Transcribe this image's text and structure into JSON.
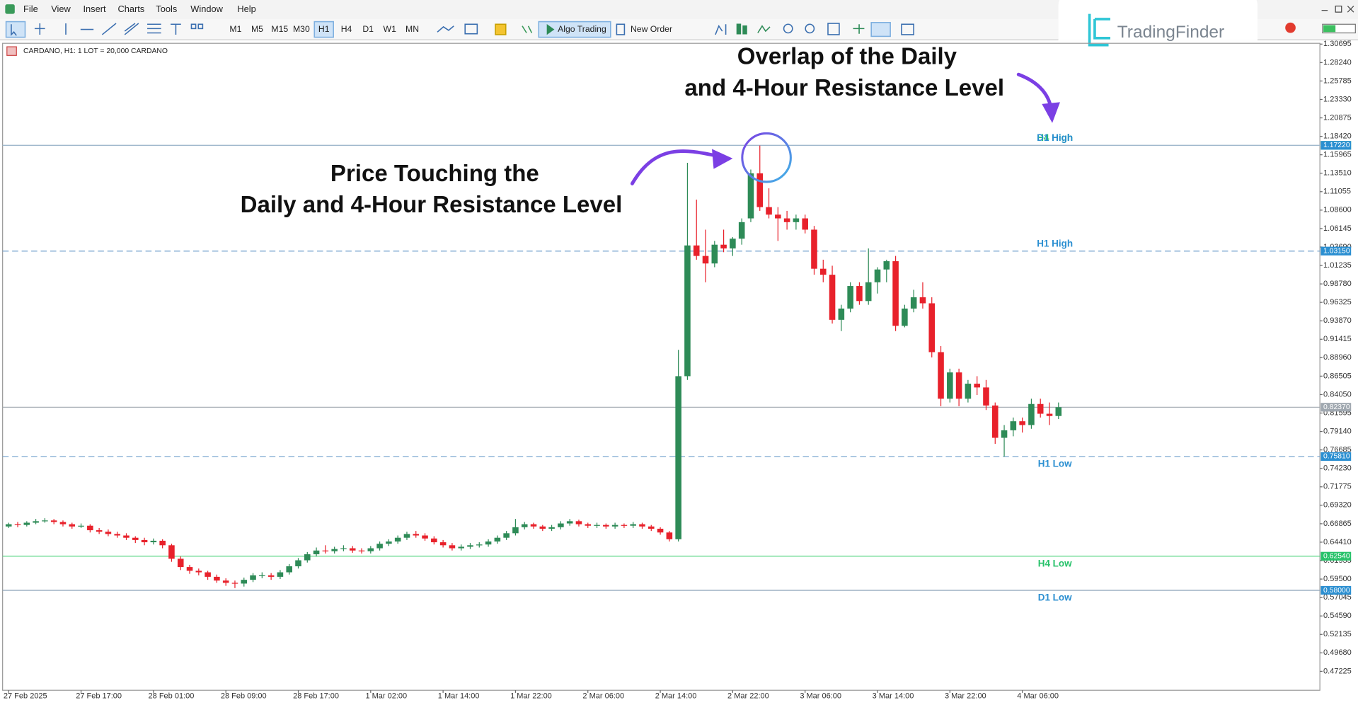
{
  "menu": [
    "File",
    "View",
    "Insert",
    "Charts",
    "Tools",
    "Window",
    "Help"
  ],
  "toolbar": {
    "timeframes": [
      "M1",
      "M5",
      "M15",
      "M30",
      "H1",
      "H4",
      "D1",
      "W1",
      "MN"
    ],
    "buttons": [
      "Algo Trading",
      "New Order"
    ]
  },
  "logo": "TradingFinder",
  "chart_data": {
    "type": "candlestick",
    "header": "CARDANO, H1:  1 LOT = 20,000 CARDANO",
    "annotations": [
      [
        "Overlap of the Daily",
        "and 4-Hour Resistance Level"
      ],
      [
        "Price Touching the",
        "Daily and 4-Hour Resistance Level"
      ]
    ],
    "up_color": "#2e8b57",
    "down_color": "#e8212b",
    "ylim": [
      0.447,
      1.308
    ],
    "yticks": [
      1.30695,
      {
        "value": 1.2824,
        "label": "1.28240"
      },
      1.25785,
      {
        "value": 1.2333,
        "label": "1.23330"
      },
      1.20875,
      {
        "value": 1.1842,
        "label": "1.18420"
      },
      1.15965,
      {
        "value": 1.1351,
        "label": "1.13510"
      },
      1.11055,
      {
        "value": 1.086,
        "label": "1.08600"
      },
      1.06145,
      {
        "value": 1.0369,
        "label": "1.03690"
      },
      1.01235,
      {
        "value": 0.9878,
        "label": "0.98780"
      },
      0.96325,
      {
        "value": 0.9387,
        "label": "0.93870"
      },
      0.91415,
      {
        "value": 0.8896,
        "label": "0.88960"
      },
      0.86505,
      {
        "value": 0.8405,
        "label": "0.84050"
      },
      0.81595,
      {
        "value": 0.7914,
        "label": "0.79140"
      },
      0.76685,
      {
        "value": 0.7423,
        "label": "0.74230"
      },
      0.71775,
      {
        "value": 0.6932,
        "label": "0.69320"
      },
      0.66865,
      {
        "value": 0.6441,
        "label": "0.64410"
      },
      0.61955,
      {
        "value": 0.595,
        "label": "0.59500"
      },
      0.57045,
      {
        "value": 0.5459,
        "label": "0.54590"
      },
      0.52135,
      {
        "value": 0.4968,
        "label": "0.49680"
      },
      0.47225
    ],
    "levels": [
      {
        "name": "H4 High",
        "value": 1.1722,
        "value_label": "1.17220",
        "color": "#9fb8cc",
        "label_color": "#27c26a",
        "dashed": false
      },
      {
        "name": "D1 High",
        "value": 1.1722,
        "value_label": "1.17220",
        "color": "#9fb8cc",
        "label_color": "#2b8fd1",
        "dashed": false
      },
      {
        "name": "H1 High",
        "value": 1.0315,
        "value_label": "1.03150",
        "color": "#6f9fcc",
        "label_color": "#2b8fd1",
        "dashed": true
      },
      {
        "name": "H1 Low",
        "value": 0.7581,
        "value_label": "0.75810",
        "color": "#6f9fcc",
        "label_color": "#2b8fd1",
        "dashed": true
      },
      {
        "name": "H4 Low",
        "value": 0.6254,
        "value_label": "0.62540",
        "color": "#4cd47a",
        "label_color": "#27c26a",
        "dashed": false
      },
      {
        "name": "D1 Low",
        "value": 0.58,
        "value_label": "0.58000",
        "color": "#8aa2b8",
        "label_color": "#2b8fd1",
        "dashed": false
      }
    ],
    "last_price": {
      "value": 0.8237,
      "value_label": "0.82370",
      "color": "#a0a8b0"
    },
    "categories": [
      "27 Feb 2025",
      null,
      null,
      null,
      null,
      null,
      null,
      null,
      "27 Feb 17:00",
      null,
      null,
      null,
      null,
      null,
      null,
      null,
      "28 Feb 01:00",
      null,
      null,
      null,
      null,
      null,
      null,
      null,
      "28 Feb 09:00",
      null,
      null,
      null,
      null,
      null,
      null,
      null,
      "28 Feb 17:00",
      null,
      null,
      null,
      null,
      null,
      null,
      null,
      "1 Mar 02:00",
      null,
      null,
      null,
      null,
      null,
      null,
      null,
      "1 Mar 14:00",
      null,
      null,
      null,
      null,
      null,
      null,
      null,
      "1 Mar 22:00",
      null,
      null,
      null,
      null,
      null,
      null,
      null,
      "2 Mar 06:00",
      null,
      null,
      null,
      null,
      null,
      null,
      null,
      "2 Mar 14:00",
      null,
      null,
      null,
      null,
      null,
      null,
      null,
      "2 Mar 22:00",
      null,
      null,
      null,
      null,
      null,
      null,
      null,
      "3 Mar 06:00",
      null,
      null,
      null,
      null,
      null,
      null,
      null,
      "3 Mar 14:00",
      null,
      null,
      null,
      null,
      null,
      null,
      null,
      "3 Mar 22:00",
      null,
      null,
      null,
      null,
      null,
      null,
      null,
      "4 Mar 06:00",
      null,
      null,
      null,
      null
    ],
    "ohlc": [
      [
        0.665,
        0.67,
        0.663,
        0.668
      ],
      [
        0.668,
        0.671,
        0.664,
        0.667
      ],
      [
        0.667,
        0.672,
        0.665,
        0.67
      ],
      [
        0.67,
        0.675,
        0.668,
        0.672
      ],
      [
        0.672,
        0.676,
        0.67,
        0.673
      ],
      [
        0.673,
        0.675,
        0.668,
        0.671
      ],
      [
        0.671,
        0.673,
        0.665,
        0.668
      ],
      [
        0.668,
        0.67,
        0.662,
        0.665
      ],
      [
        0.665,
        0.669,
        0.663,
        0.666
      ],
      [
        0.666,
        0.668,
        0.657,
        0.66
      ],
      [
        0.66,
        0.663,
        0.655,
        0.658
      ],
      [
        0.658,
        0.661,
        0.652,
        0.655
      ],
      [
        0.655,
        0.658,
        0.65,
        0.653
      ],
      [
        0.653,
        0.656,
        0.647,
        0.65
      ],
      [
        0.65,
        0.652,
        0.643,
        0.647
      ],
      [
        0.647,
        0.65,
        0.64,
        0.644
      ],
      [
        0.644,
        0.649,
        0.641,
        0.646
      ],
      [
        0.646,
        0.648,
        0.636,
        0.64
      ],
      [
        0.64,
        0.642,
        0.618,
        0.622
      ],
      [
        0.622,
        0.625,
        0.607,
        0.611
      ],
      [
        0.611,
        0.614,
        0.602,
        0.606
      ],
      [
        0.606,
        0.609,
        0.6,
        0.604
      ],
      [
        0.604,
        0.606,
        0.594,
        0.598
      ],
      [
        0.598,
        0.601,
        0.59,
        0.593
      ],
      [
        0.593,
        0.596,
        0.586,
        0.59
      ],
      [
        0.59,
        0.593,
        0.583,
        0.589
      ],
      [
        0.589,
        0.597,
        0.585,
        0.594
      ],
      [
        0.594,
        0.603,
        0.591,
        0.6
      ],
      [
        0.6,
        0.604,
        0.596,
        0.6
      ],
      [
        0.6,
        0.603,
        0.594,
        0.598
      ],
      [
        0.598,
        0.607,
        0.595,
        0.604
      ],
      [
        0.604,
        0.615,
        0.601,
        0.612
      ],
      [
        0.612,
        0.623,
        0.609,
        0.62
      ],
      [
        0.62,
        0.631,
        0.617,
        0.628
      ],
      [
        0.628,
        0.637,
        0.625,
        0.633
      ],
      [
        0.633,
        0.64,
        0.629,
        0.632
      ],
      [
        0.632,
        0.638,
        0.629,
        0.635
      ],
      [
        0.635,
        0.64,
        0.632,
        0.636
      ],
      [
        0.636,
        0.639,
        0.63,
        0.633
      ],
      [
        0.633,
        0.636,
        0.629,
        0.632
      ],
      [
        0.632,
        0.639,
        0.629,
        0.636
      ],
      [
        0.636,
        0.645,
        0.633,
        0.642
      ],
      [
        0.642,
        0.648,
        0.639,
        0.645
      ],
      [
        0.645,
        0.653,
        0.642,
        0.65
      ],
      [
        0.65,
        0.658,
        0.647,
        0.655
      ],
      [
        0.655,
        0.659,
        0.65,
        0.653
      ],
      [
        0.653,
        0.656,
        0.646,
        0.649
      ],
      [
        0.649,
        0.652,
        0.641,
        0.644
      ],
      [
        0.644,
        0.647,
        0.637,
        0.64
      ],
      [
        0.64,
        0.643,
        0.633,
        0.636
      ],
      [
        0.636,
        0.641,
        0.633,
        0.638
      ],
      [
        0.638,
        0.643,
        0.635,
        0.64
      ],
      [
        0.64,
        0.644,
        0.637,
        0.641
      ],
      [
        0.641,
        0.648,
        0.638,
        0.645
      ],
      [
        0.645,
        0.653,
        0.642,
        0.65
      ],
      [
        0.65,
        0.659,
        0.647,
        0.656
      ],
      [
        0.656,
        0.675,
        0.653,
        0.664
      ],
      [
        0.664,
        0.671,
        0.661,
        0.668
      ],
      [
        0.668,
        0.67,
        0.662,
        0.665
      ],
      [
        0.665,
        0.667,
        0.659,
        0.662
      ],
      [
        0.662,
        0.667,
        0.659,
        0.664
      ],
      [
        0.664,
        0.672,
        0.661,
        0.669
      ],
      [
        0.669,
        0.675,
        0.666,
        0.672
      ],
      [
        0.672,
        0.674,
        0.665,
        0.668
      ],
      [
        0.668,
        0.67,
        0.663,
        0.666
      ],
      [
        0.666,
        0.67,
        0.663,
        0.667
      ],
      [
        0.667,
        0.669,
        0.662,
        0.665
      ],
      [
        0.665,
        0.67,
        0.662,
        0.667
      ],
      [
        0.667,
        0.669,
        0.663,
        0.666
      ],
      [
        0.666,
        0.671,
        0.663,
        0.668
      ],
      [
        0.668,
        0.67,
        0.662,
        0.665
      ],
      [
        0.665,
        0.667,
        0.659,
        0.662
      ],
      [
        0.662,
        0.664,
        0.654,
        0.657
      ],
      [
        0.657,
        0.659,
        0.645,
        0.648
      ],
      [
        0.648,
        0.9,
        0.645,
        0.865
      ],
      [
        0.865,
        1.149,
        0.86,
        1.039
      ],
      [
        1.039,
        1.1,
        1.02,
        1.025
      ],
      [
        1.025,
        1.06,
        0.99,
        1.015
      ],
      [
        1.015,
        1.045,
        1.01,
        1.04
      ],
      [
        1.04,
        1.06,
        1.03,
        1.035
      ],
      [
        1.035,
        1.05,
        1.025,
        1.048
      ],
      [
        1.048,
        1.075,
        1.04,
        1.07
      ],
      [
        1.075,
        1.14,
        1.07,
        1.135
      ],
      [
        1.135,
        1.172,
        1.085,
        1.09
      ],
      [
        1.09,
        1.115,
        1.075,
        1.08
      ],
      [
        1.08,
        1.09,
        1.045,
        1.075
      ],
      [
        1.075,
        1.085,
        1.06,
        1.07
      ],
      [
        1.07,
        1.08,
        1.06,
        1.075
      ],
      [
        1.075,
        1.08,
        1.055,
        1.06
      ],
      [
        1.06,
        1.065,
        1.0,
        1.008
      ],
      [
        1.008,
        1.02,
        0.99,
        1.0
      ],
      [
        1.0,
        1.012,
        0.935,
        0.94
      ],
      [
        0.94,
        0.96,
        0.925,
        0.955
      ],
      [
        0.955,
        0.99,
        0.95,
        0.985
      ],
      [
        0.985,
        0.99,
        0.96,
        0.965
      ],
      [
        0.965,
        1.035,
        0.96,
        0.99
      ],
      [
        0.99,
        1.01,
        0.975,
        1.007
      ],
      [
        1.007,
        1.02,
        0.99,
        1.018
      ],
      [
        1.018,
        1.025,
        0.925,
        0.932
      ],
      [
        0.932,
        0.96,
        0.93,
        0.955
      ],
      [
        0.955,
        0.98,
        0.95,
        0.97
      ],
      [
        0.97,
        0.99,
        0.955,
        0.962
      ],
      [
        0.962,
        0.97,
        0.89,
        0.897
      ],
      [
        0.897,
        0.905,
        0.825,
        0.835
      ],
      [
        0.835,
        0.875,
        0.83,
        0.87
      ],
      [
        0.87,
        0.875,
        0.825,
        0.835
      ],
      [
        0.835,
        0.86,
        0.83,
        0.855
      ],
      [
        0.855,
        0.865,
        0.84,
        0.85
      ],
      [
        0.85,
        0.86,
        0.82,
        0.826
      ],
      [
        0.826,
        0.83,
        0.775,
        0.783
      ],
      [
        0.783,
        0.8,
        0.758,
        0.793
      ],
      [
        0.793,
        0.81,
        0.785,
        0.805
      ],
      [
        0.805,
        0.81,
        0.79,
        0.8
      ],
      [
        0.8,
        0.835,
        0.795,
        0.828
      ],
      [
        0.828,
        0.835,
        0.81,
        0.815
      ],
      [
        0.815,
        0.83,
        0.8,
        0.812
      ],
      [
        0.812,
        0.83,
        0.808,
        0.8237
      ]
    ]
  }
}
